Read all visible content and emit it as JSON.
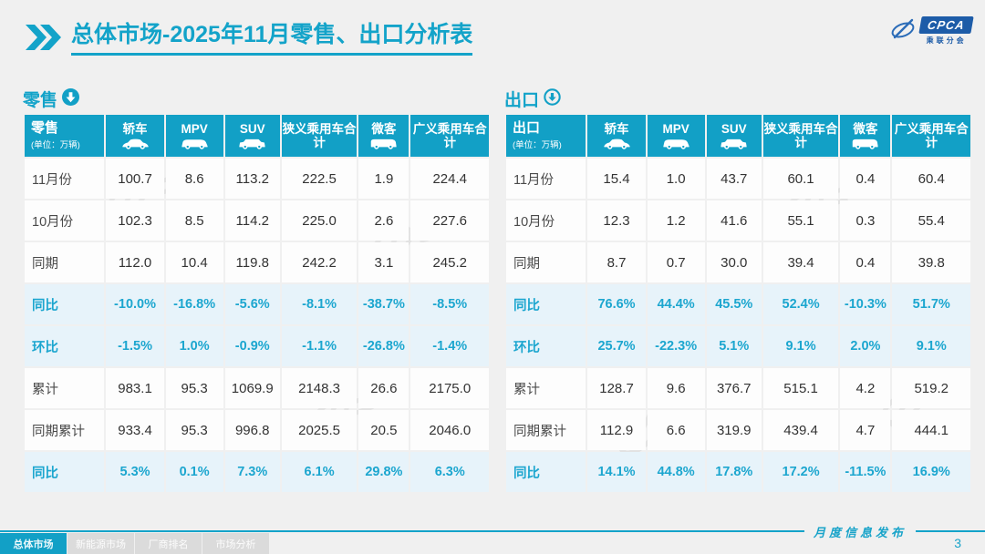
{
  "colors": {
    "accent": "#13A3C9",
    "header_bg": "#12A0C6",
    "highlight_bg": "#E7F3FA",
    "highlight_text": "#1CA6CF",
    "logo_blue": "#1D5CA8",
    "tab_inactive_bg": "#DBDBDB",
    "page_bg": "#F0F0F0"
  },
  "header": {
    "title_primary": "总体市场",
    "title_secondary": "-2025年11月零售、出口分析表",
    "logo_acronym": "CPCA",
    "logo_name": "乘联分会"
  },
  "chart_data": [
    {
      "type": "table",
      "title": "零售",
      "unit_note": "(单位：万辆)",
      "arrow_icon": "circle-down-arrow-filled-icon",
      "columns": [
        "轿车",
        "MPV",
        "SUV",
        "狭义乘用车合计",
        "微客",
        "广义乘用车合计"
      ],
      "column_icons": [
        "sedan-icon",
        "mpv-icon",
        "suv-icon",
        null,
        "microvan-icon",
        null
      ],
      "rows": [
        {
          "label": "11月份",
          "highlight": false,
          "values": [
            "100.7",
            "8.6",
            "113.2",
            "222.5",
            "1.9",
            "224.4"
          ]
        },
        {
          "label": "10月份",
          "highlight": false,
          "values": [
            "102.3",
            "8.5",
            "114.2",
            "225.0",
            "2.6",
            "227.6"
          ]
        },
        {
          "label": "同期",
          "highlight": false,
          "values": [
            "112.0",
            "10.4",
            "119.8",
            "242.2",
            "3.1",
            "245.2"
          ]
        },
        {
          "label": "同比",
          "highlight": true,
          "values": [
            "-10.0%",
            "-16.8%",
            "-5.6%",
            "-8.1%",
            "-38.7%",
            "-8.5%"
          ]
        },
        {
          "label": "环比",
          "highlight": true,
          "values": [
            "-1.5%",
            "1.0%",
            "-0.9%",
            "-1.1%",
            "-26.8%",
            "-1.4%"
          ]
        },
        {
          "label": "累计",
          "highlight": false,
          "values": [
            "983.1",
            "95.3",
            "1069.9",
            "2148.3",
            "26.6",
            "2175.0"
          ]
        },
        {
          "label": "同期累计",
          "highlight": false,
          "values": [
            "933.4",
            "95.3",
            "996.8",
            "2025.5",
            "20.5",
            "2046.0"
          ]
        },
        {
          "label": "同比",
          "highlight": true,
          "values": [
            "5.3%",
            "0.1%",
            "7.3%",
            "6.1%",
            "29.8%",
            "6.3%"
          ]
        }
      ]
    },
    {
      "type": "table",
      "title": "出口",
      "unit_note": "(单位：万辆)",
      "arrow_icon": "circle-down-arrow-outline-icon",
      "columns": [
        "轿车",
        "MPV",
        "SUV",
        "狭义乘用车合计",
        "微客",
        "广义乘用车合计"
      ],
      "column_icons": [
        "sedan-icon",
        "mpv-icon",
        "suv-icon",
        null,
        "microvan-icon",
        null
      ],
      "rows": [
        {
          "label": "11月份",
          "highlight": false,
          "values": [
            "15.4",
            "1.0",
            "43.7",
            "60.1",
            "0.4",
            "60.4"
          ]
        },
        {
          "label": "10月份",
          "highlight": false,
          "values": [
            "12.3",
            "1.2",
            "41.6",
            "55.1",
            "0.3",
            "55.4"
          ]
        },
        {
          "label": "同期",
          "highlight": false,
          "values": [
            "8.7",
            "0.7",
            "30.0",
            "39.4",
            "0.4",
            "39.8"
          ]
        },
        {
          "label": "同比",
          "highlight": true,
          "values": [
            "76.6%",
            "44.4%",
            "45.5%",
            "52.4%",
            "-10.3%",
            "51.7%"
          ]
        },
        {
          "label": "环比",
          "highlight": true,
          "values": [
            "25.7%",
            "-22.3%",
            "5.1%",
            "9.1%",
            "2.0%",
            "9.1%"
          ]
        },
        {
          "label": "累计",
          "highlight": false,
          "values": [
            "128.7",
            "9.6",
            "376.7",
            "515.1",
            "4.2",
            "519.2"
          ]
        },
        {
          "label": "同期累计",
          "highlight": false,
          "values": [
            "112.9",
            "6.6",
            "319.9",
            "439.4",
            "4.7",
            "444.1"
          ]
        },
        {
          "label": "同比",
          "highlight": true,
          "values": [
            "14.1%",
            "44.8%",
            "17.8%",
            "17.2%",
            "-11.5%",
            "16.9%"
          ]
        }
      ]
    }
  ],
  "footer": {
    "tabs": [
      {
        "label": "总体市场",
        "active": true
      },
      {
        "label": "新能源市场",
        "active": false
      },
      {
        "label": "厂商排名",
        "active": false
      },
      {
        "label": "市场分析",
        "active": false
      }
    ],
    "ribbon_text": "月度信息发布",
    "page_number": "3"
  }
}
